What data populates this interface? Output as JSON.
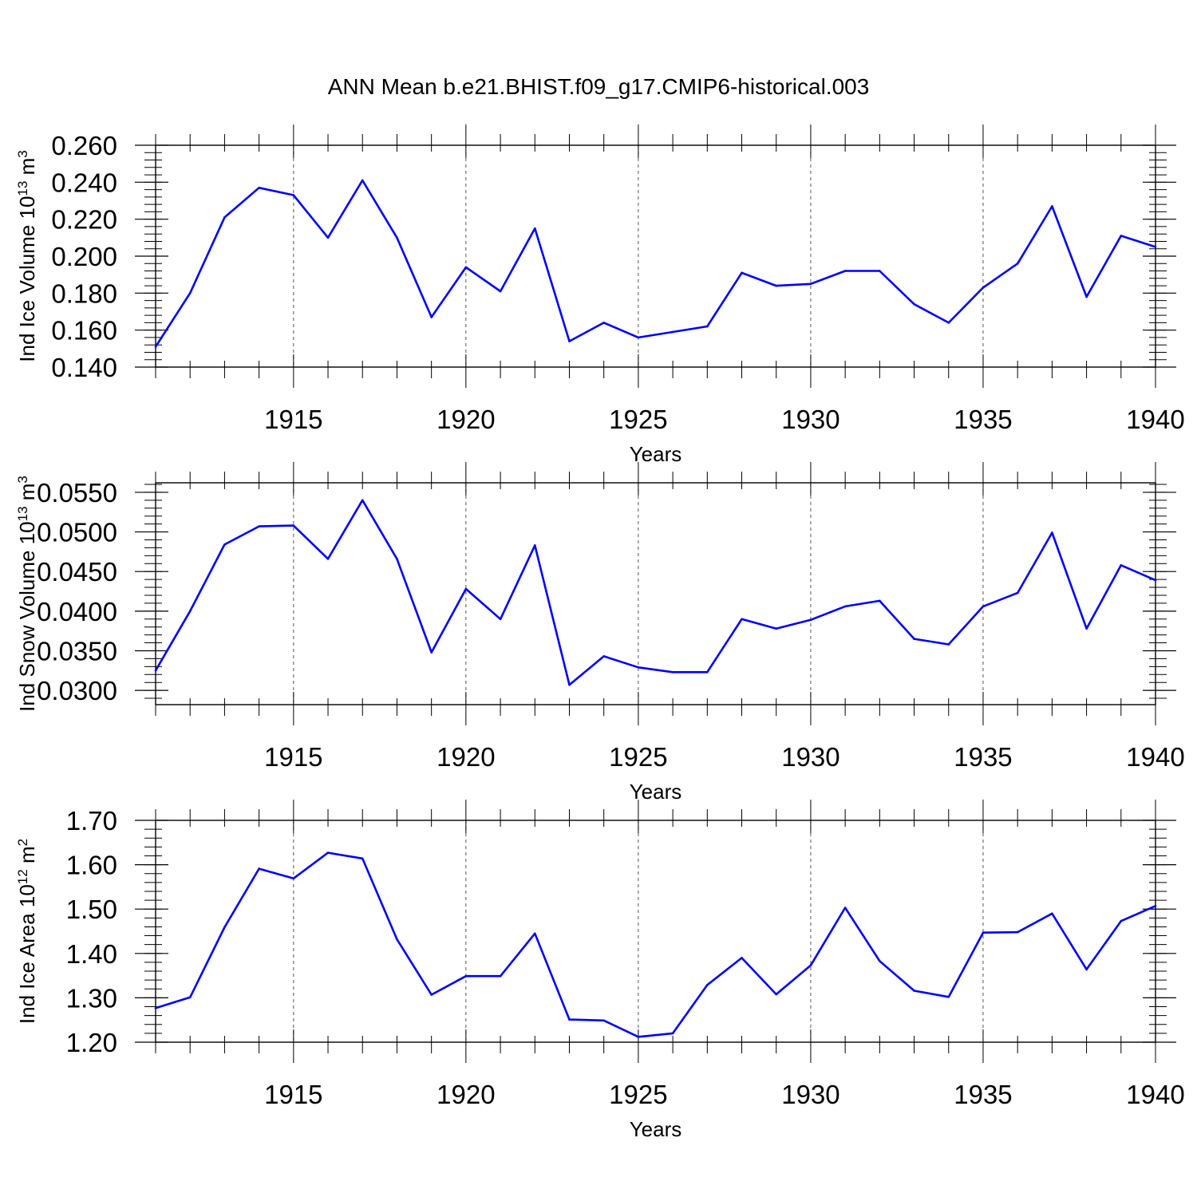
{
  "title": "ANN Mean b.e21.BHIST.f09_g17.CMIP6-historical.003",
  "colors": {
    "line": "#0000ff",
    "axis": "#000000",
    "grid": "#555555"
  },
  "chart_data": [
    {
      "type": "line",
      "name": "ice-volume",
      "xlabel": "Years",
      "ylabel": {
        "text": "Ind Ice Volume 10",
        "exponent": "13",
        "unit": " m",
        "unit_exponent": "3"
      },
      "x": [
        1911,
        1912,
        1913,
        1914,
        1915,
        1916,
        1917,
        1918,
        1919,
        1920,
        1921,
        1922,
        1923,
        1924,
        1925,
        1926,
        1927,
        1928,
        1929,
        1930,
        1931,
        1932,
        1933,
        1934,
        1935,
        1936,
        1937,
        1938,
        1939,
        1940
      ],
      "values": [
        0.151,
        0.18,
        0.221,
        0.237,
        0.233,
        0.21,
        0.241,
        0.21,
        0.167,
        0.194,
        0.181,
        0.215,
        0.154,
        0.164,
        0.156,
        0.159,
        0.162,
        0.191,
        0.184,
        0.185,
        0.192,
        0.192,
        0.174,
        0.164,
        0.183,
        0.196,
        0.227,
        0.178,
        0.211,
        0.205
      ],
      "xlim": [
        1911,
        1940
      ],
      "ylim": [
        0.14,
        0.26
      ],
      "yticks": [
        0.14,
        0.16,
        0.18,
        0.2,
        0.22,
        0.24,
        0.26
      ],
      "ytick_labels": [
        "0.140",
        "0.160",
        "0.180",
        "0.200",
        "0.220",
        "0.240",
        "0.260"
      ],
      "yminor_step": 0.004,
      "xticks": [
        1915,
        1920,
        1925,
        1930,
        1935,
        1940
      ],
      "xtick_labels": [
        "1915",
        "1920",
        "1925",
        "1930",
        "1935",
        "1940"
      ],
      "grid": "vertical dashed at major x ticks"
    },
    {
      "type": "line",
      "name": "snow-volume",
      "xlabel": "Years",
      "ylabel": {
        "text": "Ind Snow Volume 10",
        "exponent": "13",
        "unit": " m",
        "unit_exponent": "3"
      },
      "x": [
        1911,
        1912,
        1913,
        1914,
        1915,
        1916,
        1917,
        1918,
        1919,
        1920,
        1921,
        1922,
        1923,
        1924,
        1925,
        1926,
        1927,
        1928,
        1929,
        1930,
        1931,
        1932,
        1933,
        1934,
        1935,
        1936,
        1937,
        1938,
        1939,
        1940
      ],
      "values": [
        0.0325,
        0.04,
        0.0484,
        0.0507,
        0.0508,
        0.0466,
        0.054,
        0.0466,
        0.0348,
        0.0428,
        0.039,
        0.0483,
        0.0307,
        0.0343,
        0.0329,
        0.0323,
        0.0323,
        0.039,
        0.0378,
        0.0389,
        0.0406,
        0.0413,
        0.0365,
        0.0358,
        0.0406,
        0.0423,
        0.0499,
        0.0378,
        0.0458,
        0.0439
      ],
      "xlim": [
        1911,
        1940
      ],
      "ylim": [
        0.0282,
        0.0562
      ],
      "yticks": [
        0.03,
        0.035,
        0.04,
        0.045,
        0.05,
        0.055
      ],
      "ytick_labels": [
        "0.0300",
        "0.0350",
        "0.0400",
        "0.0450",
        "0.0500",
        "0.0550"
      ],
      "yminor_step": 0.001,
      "xticks": [
        1915,
        1920,
        1925,
        1930,
        1935,
        1940
      ],
      "xtick_labels": [
        "1915",
        "1920",
        "1925",
        "1930",
        "1935",
        "1940"
      ],
      "grid": "vertical dashed at major x ticks"
    },
    {
      "type": "line",
      "name": "ice-area",
      "xlabel": "Years",
      "ylabel": {
        "text": "Ind Ice Area 10",
        "exponent": "12",
        "unit": " m",
        "unit_exponent": "2"
      },
      "x": [
        1911,
        1912,
        1913,
        1914,
        1915,
        1916,
        1917,
        1918,
        1919,
        1920,
        1921,
        1922,
        1923,
        1924,
        1925,
        1926,
        1927,
        1928,
        1929,
        1930,
        1931,
        1932,
        1933,
        1934,
        1935,
        1936,
        1937,
        1938,
        1939,
        1940
      ],
      "values": [
        1.277,
        1.301,
        1.459,
        1.591,
        1.569,
        1.627,
        1.614,
        1.432,
        1.307,
        1.349,
        1.349,
        1.445,
        1.251,
        1.249,
        1.212,
        1.22,
        1.329,
        1.39,
        1.308,
        1.373,
        1.503,
        1.383,
        1.316,
        1.302,
        1.447,
        1.448,
        1.49,
        1.364,
        1.473,
        1.507
      ],
      "xlim": [
        1911,
        1940
      ],
      "ylim": [
        1.2,
        1.7
      ],
      "yticks": [
        1.2,
        1.3,
        1.4,
        1.5,
        1.6,
        1.7
      ],
      "ytick_labels": [
        "1.20",
        "1.30",
        "1.40",
        "1.50",
        "1.60",
        "1.70"
      ],
      "yminor_step": 0.02,
      "xticks": [
        1915,
        1920,
        1925,
        1930,
        1935,
        1940
      ],
      "xtick_labels": [
        "1915",
        "1920",
        "1925",
        "1930",
        "1935",
        "1940"
      ],
      "grid": "vertical dashed at major x ticks"
    }
  ]
}
